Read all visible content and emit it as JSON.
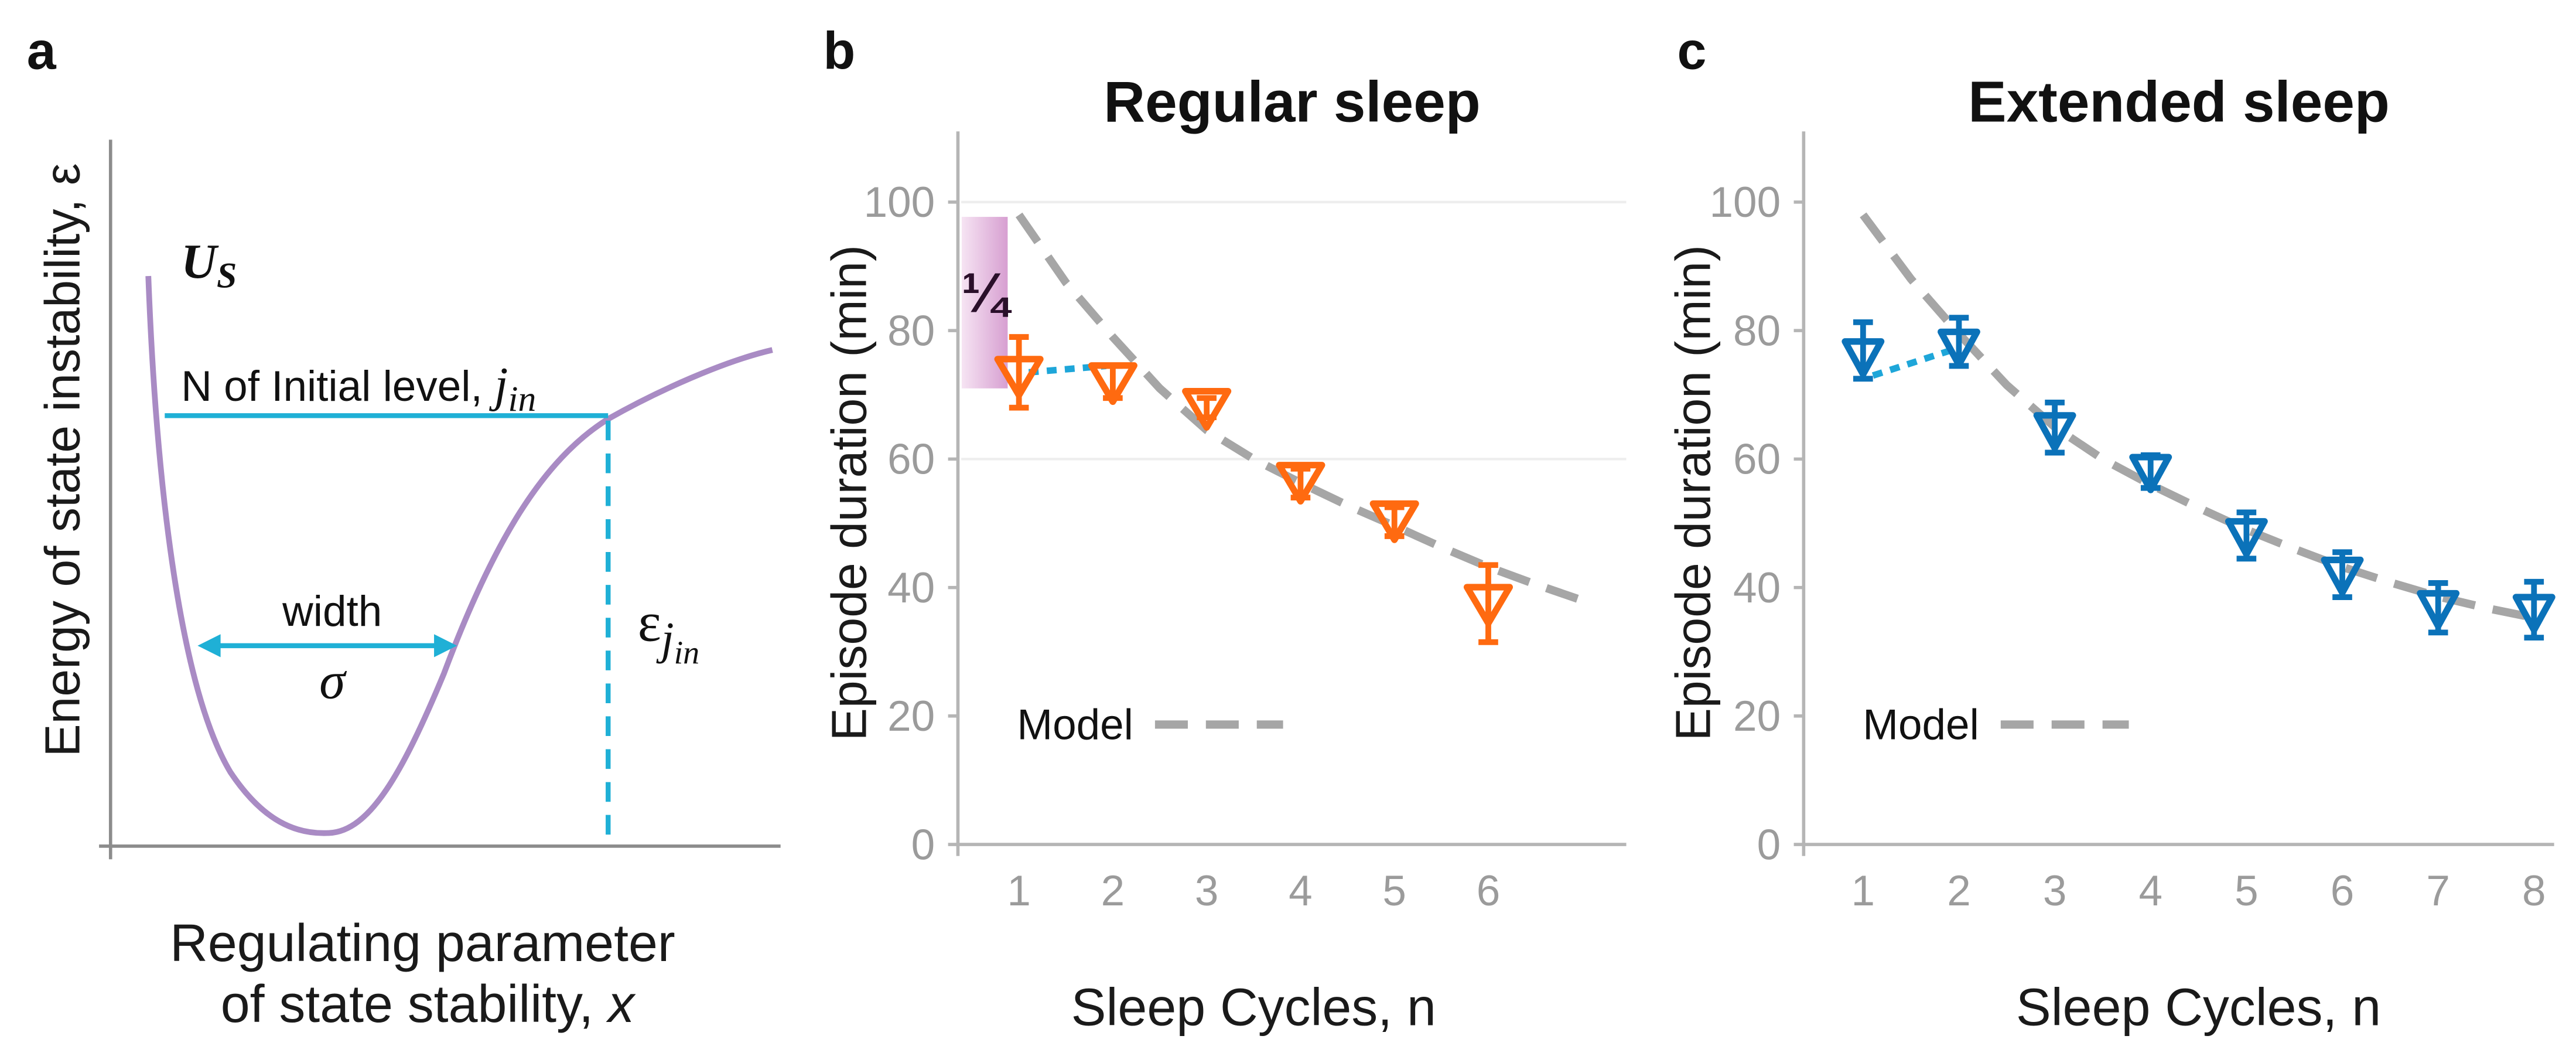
{
  "diagram_a": {
    "panel_label": "a",
    "ylabel": "Energy of state instability, ε",
    "xlabel_line1": "Regulating parameter",
    "xlabel_line2": "of state stability, ",
    "xlabel_var": "x",
    "potential": {
      "symbol": "U",
      "subscript": "S"
    },
    "initial_level": {
      "label": "N of Initial level, ",
      "symbol": "j",
      "subscript": "in"
    },
    "width": {
      "label": "width",
      "symbol": "σ"
    },
    "energy_level": {
      "symbol": "ε",
      "sub_symbol": "j",
      "subscript": "in"
    },
    "colors": {
      "curve": "#a98bc4",
      "guide": "#1fb0d6",
      "axis": "#8c8c8c"
    }
  },
  "chart_data": [
    {
      "panel_label": "b",
      "type": "scatter",
      "title": "Regular sleep",
      "xlabel": "Sleep Cycles, n",
      "ylabel": "Episode duration (min)",
      "xlim": [
        0.35,
        7.47
      ],
      "ylim": [
        0,
        111
      ],
      "xticks": [
        1,
        2,
        3,
        4,
        5,
        6
      ],
      "yticks": [
        0,
        20,
        40,
        60,
        80,
        100
      ],
      "grid_y": [
        60,
        100
      ],
      "points": {
        "color": "#ff6a10",
        "x": [
          1,
          2,
          3,
          4,
          5,
          6
        ],
        "y": [
          73,
          72,
          68,
          56.5,
          50.5,
          37.5
        ],
        "err_low": [
          68,
          69.5,
          66.5,
          54,
          48,
          31.5
        ],
        "err_high": [
          79,
          74.5,
          69.5,
          58.5,
          52.5,
          43.5
        ]
      },
      "connector": {
        "color": "#1ea6d9",
        "x": [
          1,
          2
        ],
        "y": [
          73.5,
          74.5
        ]
      },
      "model": {
        "color": "#a6a6a6",
        "x": [
          1,
          1.5,
          2,
          2.5,
          3,
          3.5,
          4,
          4.5,
          5,
          5.5,
          6,
          6.5,
          7
        ],
        "y": [
          98,
          87.5,
          79,
          71,
          64.5,
          60,
          56.3,
          52.8,
          49.6,
          46.3,
          43.2,
          40.5,
          38
        ]
      },
      "legend": {
        "label": "Model"
      },
      "annotations": [
        {
          "text": "¼",
          "x_range": [
            0.39,
            0.88
          ],
          "y_range": [
            71,
            97.7
          ]
        }
      ]
    },
    {
      "panel_label": "c",
      "type": "scatter",
      "title": "Extended sleep",
      "xlabel": "Sleep Cycles, n",
      "ylabel": "Episode duration (min)",
      "xlim": [
        0.38,
        8.21
      ],
      "ylim": [
        0,
        111
      ],
      "xticks": [
        1,
        2,
        3,
        4,
        5,
        6,
        7,
        8
      ],
      "yticks": [
        0,
        20,
        40,
        60,
        80,
        100
      ],
      "points": {
        "color": "#0b72b9",
        "x": [
          1,
          2,
          3,
          4,
          5,
          6,
          7,
          8
        ],
        "y": [
          76,
          77.5,
          64.5,
          58,
          48,
          42,
          36.8,
          36.2
        ],
        "err_low": [
          72.5,
          74.5,
          61,
          55.5,
          44.5,
          38.5,
          33,
          32.2
        ],
        "err_high": [
          81.3,
          82,
          68.8,
          60.6,
          51.7,
          45.5,
          40.7,
          40.9
        ]
      },
      "connector": {
        "color": "#1ea6d9",
        "x": [
          1,
          2
        ],
        "y": [
          73,
          77
        ]
      },
      "model": {
        "color": "#a6a6a6",
        "x": [
          1,
          1.5,
          2,
          2.5,
          3,
          3.5,
          4,
          4.5,
          5,
          5.5,
          6,
          6.5,
          7,
          7.5,
          8
        ],
        "y": [
          98,
          88,
          79.5,
          71.5,
          65,
          60,
          56,
          52.4,
          49,
          46,
          43.2,
          40.8,
          38.6,
          36.8,
          35.3
        ]
      },
      "legend": {
        "label": "Model"
      }
    }
  ]
}
